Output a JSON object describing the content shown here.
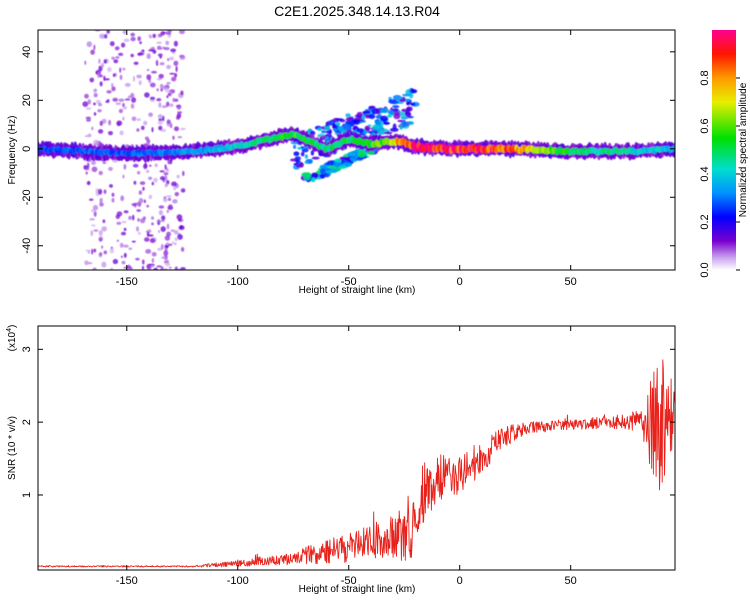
{
  "title": "C2E1.2025.348.14.13.R04",
  "chart_data": [
    {
      "type": "heatmap",
      "name": "spectrogram",
      "xlabel": "Height of straight line (km)",
      "ylabel": "Frequency (Hz)",
      "xlim": [
        -190,
        97
      ],
      "ylim": [
        -50,
        49
      ],
      "xticks": [
        -150,
        -100,
        -50,
        0,
        50
      ],
      "yticks": [
        -40,
        -20,
        0,
        20,
        40
      ],
      "colorbar": {
        "label": "Normalized spectral amplitude",
        "range": [
          0,
          1
        ],
        "ticks": [
          0.0,
          0.2,
          0.4,
          0.6,
          0.8
        ]
      },
      "ridge": {
        "description_points_x": [
          -190,
          -150,
          -120,
          -100,
          -85,
          -75,
          -60,
          -50,
          -40,
          -30,
          -27,
          -20,
          -10,
          0,
          20,
          50,
          80,
          97
        ],
        "description_points_y": [
          0,
          -2,
          -1,
          1,
          4,
          6,
          0,
          4,
          2,
          3,
          3,
          1,
          0,
          0,
          0,
          -1,
          -1,
          0
        ],
        "description_points_amp": [
          0.3,
          0.3,
          0.35,
          0.45,
          0.55,
          0.6,
          0.5,
          0.55,
          0.6,
          0.75,
          0.85,
          1.0,
          1.0,
          1.0,
          0.95,
          0.55,
          0.45,
          0.4
        ]
      }
    },
    {
      "type": "line",
      "name": "snr",
      "color": "#e8221b",
      "xlabel": "Height of straight line (km)",
      "ylabel": "SNR (10 * v/v)",
      "ymultiplier_label": "(x10",
      "ymultiplier_exp": "4",
      "ymultiplier_close": ")",
      "xlim": [
        -190,
        97
      ],
      "ylim": [
        -0.03,
        3.32
      ],
      "xticks": [
        -150,
        -100,
        -50,
        0,
        50
      ],
      "yticks": [
        1,
        2,
        3
      ],
      "trend_x": [
        -190,
        -120,
        -105,
        -80,
        -60,
        -40,
        -22,
        -20,
        -15,
        -10,
        0,
        10,
        20,
        30,
        50,
        70,
        82,
        88,
        92,
        97
      ],
      "trend_y": [
        0.02,
        0.02,
        0.05,
        0.12,
        0.22,
        0.35,
        0.45,
        0.7,
        1.05,
        1.2,
        1.3,
        1.5,
        1.8,
        1.92,
        1.97,
        2.0,
        2.02,
        1.9,
        2.05,
        2.1
      ],
      "noise_y": [
        0.01,
        0.01,
        0.04,
        0.08,
        0.16,
        0.26,
        0.35,
        0.3,
        0.35,
        0.35,
        0.28,
        0.22,
        0.16,
        0.08,
        0.07,
        0.09,
        0.15,
        0.9,
        1.0,
        0.3
      ]
    }
  ]
}
